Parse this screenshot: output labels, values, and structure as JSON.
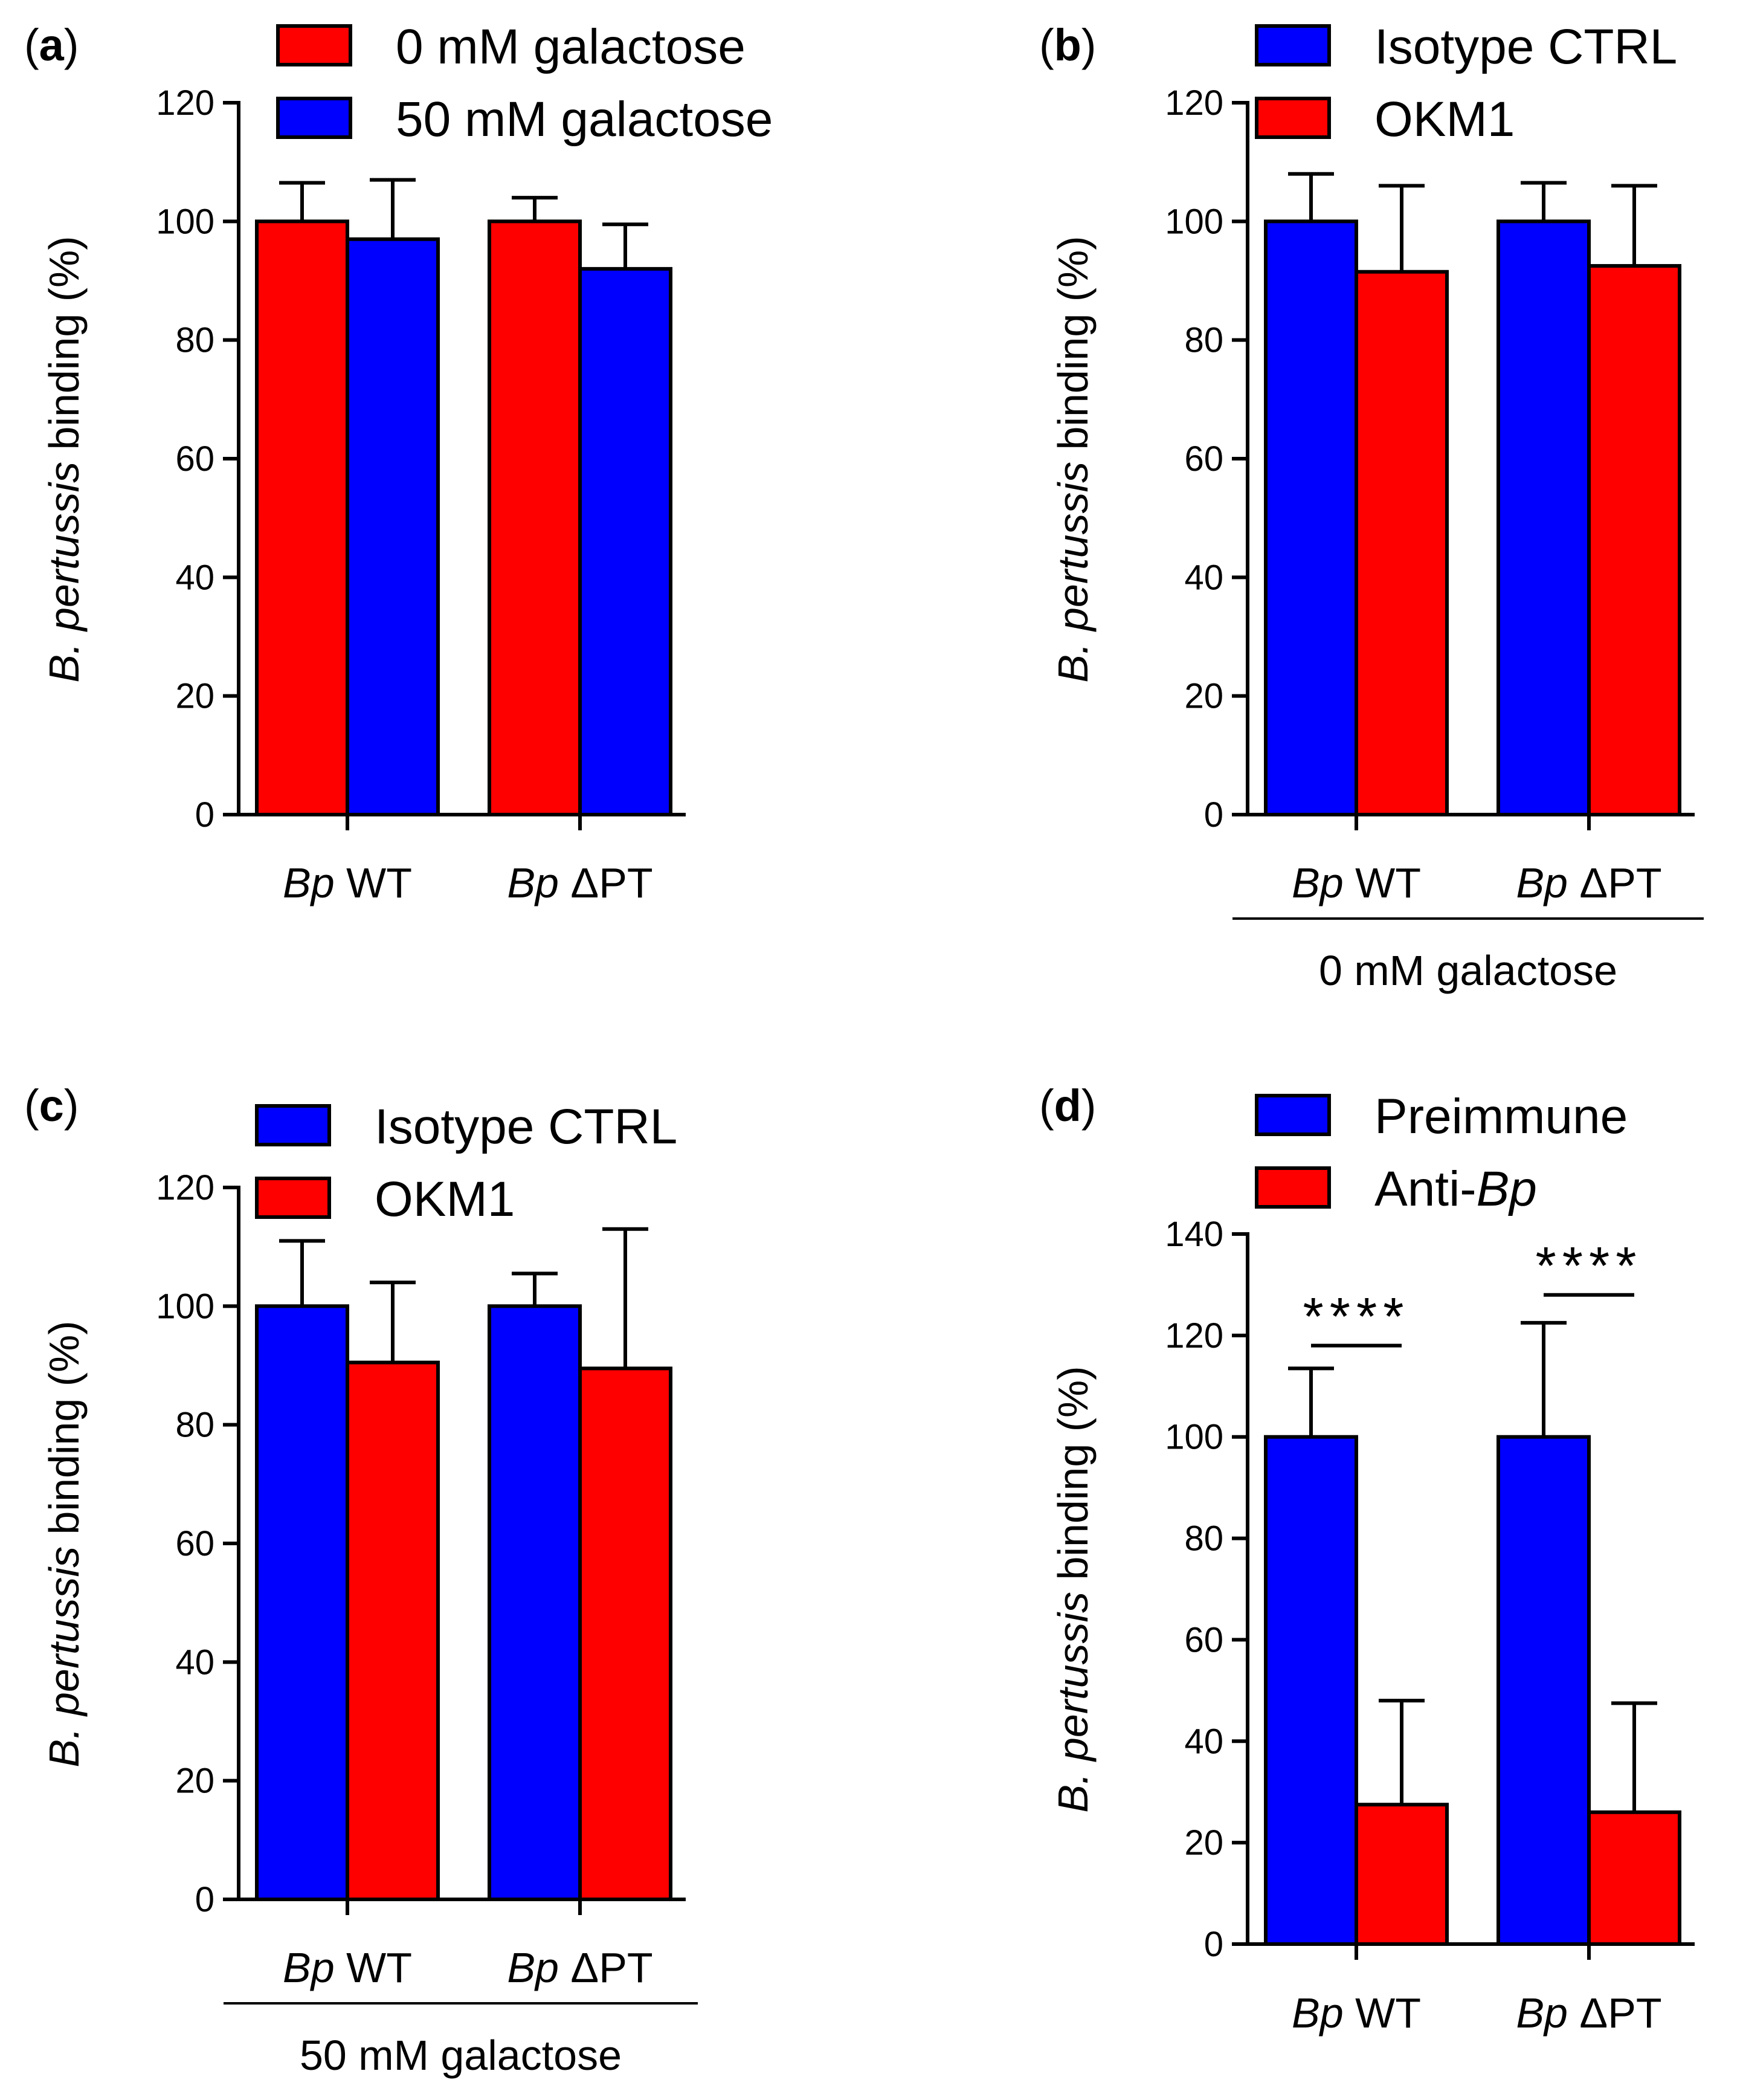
{
  "chart_data": [
    {
      "type": "bar",
      "panel": "(a)",
      "panel_letter": "a",
      "ylabel_italic": "B. pertussis",
      "ylabel_rest": "binding (%)",
      "ylim": [
        0,
        120
      ],
      "yticks": [
        "0",
        "20",
        "40",
        "60",
        "80",
        "100",
        "120"
      ],
      "categories": [
        {
          "prefix": "Bp",
          "suffix": "WT"
        },
        {
          "prefix": "Bp",
          "suffix": "ΔPT"
        }
      ],
      "series": [
        {
          "name": "0 mM galactose",
          "color": "#ff0000",
          "values": [
            100,
            100
          ],
          "errors": [
            6.5,
            4
          ]
        },
        {
          "name": "50 mM galactose",
          "color": "#0000ff",
          "values": [
            97,
            92
          ],
          "errors": [
            10,
            7.5
          ]
        }
      ],
      "group_label": "",
      "significance": []
    },
    {
      "type": "bar",
      "panel": "(b)",
      "panel_letter": "b",
      "ylabel_italic": "B. pertussis",
      "ylabel_rest": "binding (%)",
      "ylim": [
        0,
        120
      ],
      "yticks": [
        "0",
        "20",
        "40",
        "60",
        "80",
        "100",
        "120"
      ],
      "categories": [
        {
          "prefix": "Bp",
          "suffix": "WT"
        },
        {
          "prefix": "Bp",
          "suffix": "ΔPT"
        }
      ],
      "series": [
        {
          "name": "Isotype CTRL",
          "color": "#0000ff",
          "values": [
            100,
            100
          ],
          "errors": [
            8,
            6.5
          ]
        },
        {
          "name": "OKM1",
          "color": "#ff0000",
          "values": [
            91.5,
            92.5
          ],
          "errors": [
            14.5,
            13.5
          ]
        }
      ],
      "group_label": "0 mM galactose",
      "significance": []
    },
    {
      "type": "bar",
      "panel": "(c)",
      "panel_letter": "c",
      "ylabel_italic": "B. pertussis",
      "ylabel_rest": "binding (%)",
      "ylim": [
        0,
        120
      ],
      "yticks": [
        "0",
        "20",
        "40",
        "60",
        "80",
        "100",
        "120"
      ],
      "categories": [
        {
          "prefix": "Bp",
          "suffix": "WT"
        },
        {
          "prefix": "Bp",
          "suffix": "ΔPT"
        }
      ],
      "series": [
        {
          "name": "Isotype CTRL",
          "color": "#0000ff",
          "values": [
            100,
            100
          ],
          "errors": [
            11,
            5.5
          ]
        },
        {
          "name": "OKM1",
          "color": "#ff0000",
          "values": [
            90.5,
            89.5
          ],
          "errors": [
            13.5,
            23.5
          ]
        }
      ],
      "group_label": "50 mM galactose",
      "significance": []
    },
    {
      "type": "bar",
      "panel": "(d)",
      "panel_letter": "d",
      "ylabel_italic": "B. pertussis",
      "ylabel_rest": "binding (%)",
      "ylim": [
        0,
        140
      ],
      "yticks": [
        "0",
        "20",
        "40",
        "60",
        "80",
        "100",
        "120",
        "140"
      ],
      "categories": [
        {
          "prefix": "Bp",
          "suffix": "WT"
        },
        {
          "prefix": "Bp",
          "suffix": "ΔPT"
        }
      ],
      "series": [
        {
          "name": "Preimmune",
          "color": "#0000ff",
          "values": [
            100,
            100
          ],
          "errors": [
            13.5,
            22.5
          ]
        },
        {
          "name": "Anti-Bp",
          "legend_prefix": "Anti-",
          "legend_italic": "Bp",
          "color": "#ff0000",
          "values": [
            27.5,
            26
          ],
          "errors": [
            20.5,
            21.5
          ]
        }
      ],
      "group_label": "",
      "significance": [
        {
          "category": 0,
          "label": "****",
          "value": 118
        },
        {
          "category": 1,
          "label": "****",
          "value": 128
        }
      ]
    }
  ]
}
